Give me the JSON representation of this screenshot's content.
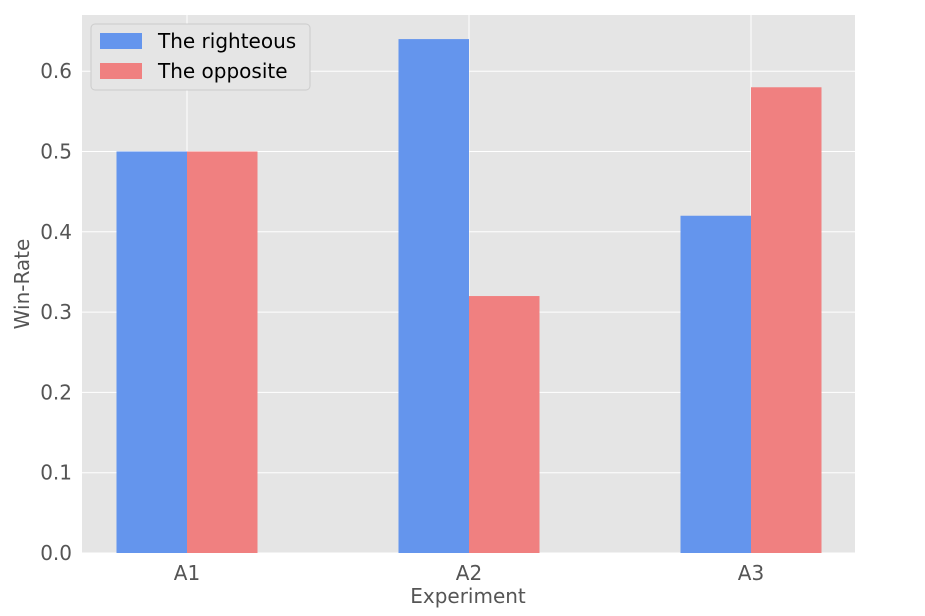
{
  "chart_data": {
    "type": "bar",
    "title": "",
    "xlabel": "Experiment",
    "ylabel": "Win-Rate",
    "categories": [
      "A1",
      "A2",
      "A3"
    ],
    "series": [
      {
        "name": "The righteous",
        "values": [
          0.5,
          0.64,
          0.42
        ],
        "color": "#6495ED"
      },
      {
        "name": "The opposite",
        "values": [
          0.5,
          0.32,
          0.58
        ],
        "color": "#F08080"
      }
    ],
    "ylim": [
      0,
      0.67
    ],
    "yticks": [
      "0.0",
      "0.1",
      "0.2",
      "0.3",
      "0.4",
      "0.5",
      "0.6"
    ],
    "grid": true,
    "legend_position": "top-left",
    "colors": {
      "plot_background": "#E5E5E5",
      "grid": "#FFFFFF",
      "text": "#555555"
    }
  }
}
